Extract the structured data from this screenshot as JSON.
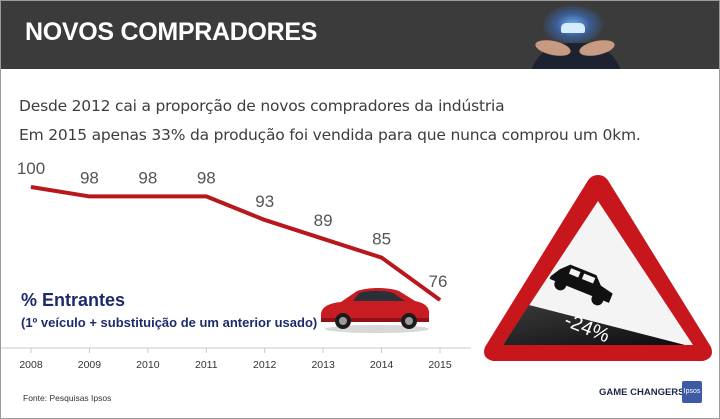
{
  "header": {
    "title": "NOVOS COMPRADORES"
  },
  "subtitle": {
    "line1": "Desde 2012 cai a proporção de novos compradores da indústria",
    "line2": "Em 2015 apenas 33% da produção foi vendida para que nunca comprou um 0km."
  },
  "chart_data": {
    "type": "line",
    "categories": [
      "2008",
      "2009",
      "2010",
      "2011",
      "2012",
      "2013",
      "2014",
      "2015"
    ],
    "values": [
      100,
      98,
      98,
      98,
      93,
      89,
      85,
      76
    ],
    "title": "% Entrantes",
    "subtitle": "(1º veículo + substituição de um anterior usado)",
    "xlabel": "",
    "ylabel": "",
    "ylim": [
      70,
      102
    ],
    "grid": false,
    "line_color": "#b8171c",
    "axis_color": "#c9c9c9"
  },
  "sign": {
    "text": "-24%",
    "border_color": "#c8161d"
  },
  "source": "Fonte: Pesquisas Ipsos",
  "brand": {
    "name": "GAME CHANGERS",
    "logo": "Ipsos"
  },
  "colors": {
    "header_bg": "#3b3b3b",
    "legend_blue": "#1d2b6b",
    "accent_red": "#c8161d"
  }
}
